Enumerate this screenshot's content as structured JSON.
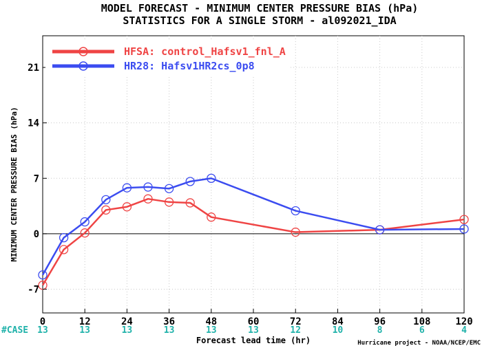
{
  "chart_data": {
    "type": "line",
    "title": "MODEL FORECAST - MINIMUM CENTER PRESSURE BIAS (hPa)",
    "subtitle": "STATISTICS FOR A SINGLE STORM - al092021_IDA",
    "xlabel": "Forecast lead time (hr)",
    "ylabel": "MINIMUM CENTER PRESSURE BIAS (hPa)",
    "xlim": [
      0,
      120
    ],
    "ylim": [
      -10,
      25
    ],
    "x_ticks": [
      0,
      12,
      24,
      36,
      48,
      60,
      72,
      84,
      96,
      108,
      120
    ],
    "y_ticks": [
      -7,
      0,
      7,
      14,
      21
    ],
    "zero_line": true,
    "legend_position": "top-left",
    "series": [
      {
        "name": "HFSA: control_Hafsv1_fnl_A",
        "color": "#ef4444",
        "x": [
          0,
          6,
          12,
          18,
          24,
          30,
          36,
          42,
          48,
          72,
          96,
          120
        ],
        "values": [
          -6.5,
          -2.0,
          0.1,
          3.0,
          3.4,
          4.4,
          4.0,
          3.9,
          2.1,
          0.2,
          0.5,
          1.8
        ]
      },
      {
        "name": "HR28: Hafsv1HR2cs_0p8",
        "color": "#3b4cf0",
        "x": [
          0,
          6,
          12,
          18,
          24,
          30,
          36,
          42,
          48,
          72,
          96,
          120
        ],
        "values": [
          -5.2,
          -0.5,
          1.5,
          4.3,
          5.8,
          5.9,
          5.7,
          6.6,
          7.0,
          2.9,
          0.5,
          0.6
        ]
      }
    ],
    "case_label": "#CASE",
    "case_x": [
      0,
      12,
      24,
      36,
      48,
      60,
      72,
      84,
      96,
      108,
      120
    ],
    "case_counts": [
      "13",
      "13",
      "13",
      "13",
      "13",
      "13",
      "12",
      "10",
      "8",
      "6",
      "4"
    ],
    "case_color": "#20b2aa",
    "credit": "Hurricane project - NOAA/NCEP/EMC"
  }
}
